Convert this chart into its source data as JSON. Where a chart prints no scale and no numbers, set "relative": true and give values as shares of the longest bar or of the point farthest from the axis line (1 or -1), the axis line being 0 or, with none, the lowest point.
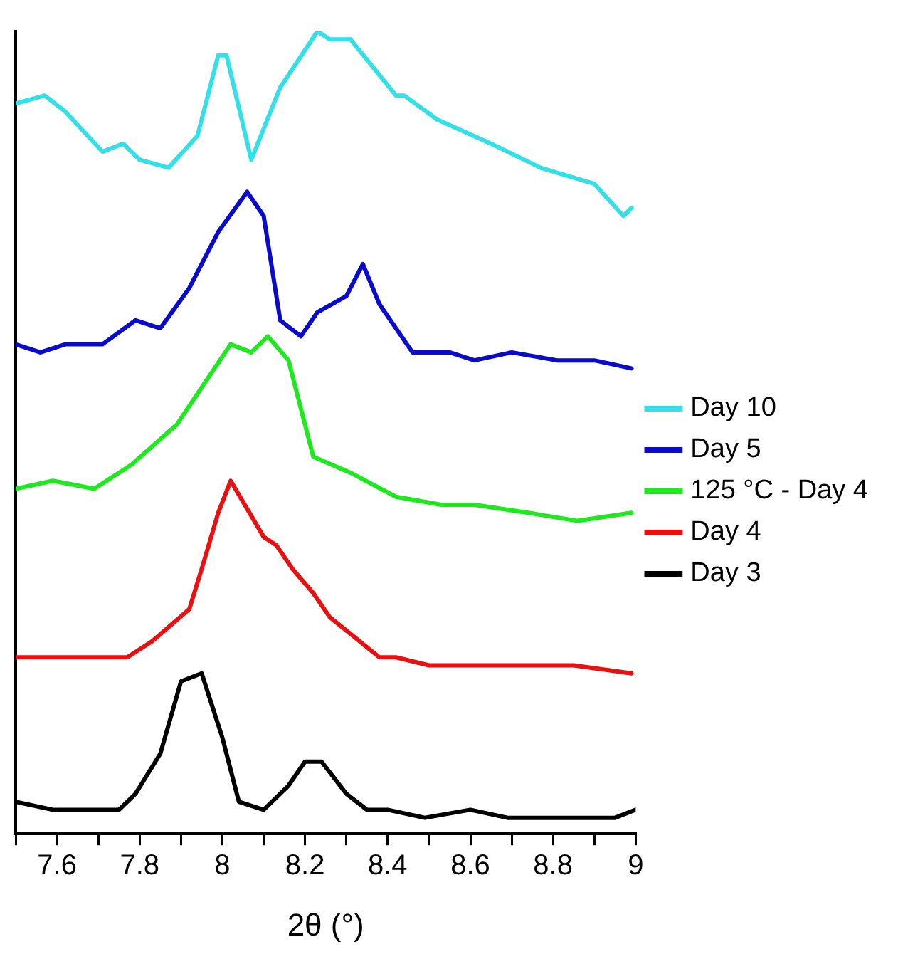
{
  "chart_data": {
    "type": "line",
    "relative": true,
    "xlabel": "2θ (°)",
    "xlim": [
      7.5,
      9
    ],
    "xticks": [
      {
        "value": 7.5,
        "label": null
      },
      7.6,
      {
        "value": 7.7,
        "label": null
      },
      7.8,
      {
        "value": 7.9,
        "label": null
      },
      8,
      {
        "value": 8.1,
        "label": null
      },
      8.2,
      {
        "value": 8.3,
        "label": null
      },
      8.4,
      {
        "value": 8.5,
        "label": null
      },
      8.6,
      {
        "value": 8.7,
        "label": null
      },
      8.8,
      {
        "value": 8.9,
        "label": null
      },
      9
    ],
    "grid": false,
    "legend": "right",
    "marker": "none",
    "line_style": "solid",
    "series": [
      {
        "name": "Day 10",
        "color": "#33e0e8",
        "x": [
          7.5,
          7.57,
          7.62,
          7.71,
          7.76,
          7.8,
          7.87,
          7.94,
          7.99,
          8.01,
          8.07,
          8.14,
          8.23,
          8.26,
          8.31,
          8.42,
          8.44,
          8.52,
          8.65,
          8.77,
          8.9,
          8.97,
          8.99
        ],
        "values": [
          0.91,
          0.92,
          0.9,
          0.85,
          0.86,
          0.84,
          0.83,
          0.87,
          0.97,
          0.97,
          0.84,
          0.93,
          1.0,
          0.99,
          0.99,
          0.92,
          0.92,
          0.89,
          0.86,
          0.83,
          0.81,
          0.77,
          0.78
        ]
      },
      {
        "name": "Day 5",
        "color": "#0a0acc",
        "x": [
          7.5,
          7.56,
          7.62,
          7.71,
          7.79,
          7.85,
          7.92,
          7.99,
          8.06,
          8.1,
          8.14,
          8.19,
          8.23,
          8.3,
          8.34,
          8.38,
          8.46,
          8.55,
          8.61,
          8.7,
          8.81,
          8.9,
          8.99
        ],
        "values": [
          0.61,
          0.6,
          0.61,
          0.61,
          0.64,
          0.63,
          0.68,
          0.75,
          0.8,
          0.77,
          0.64,
          0.62,
          0.65,
          0.67,
          0.71,
          0.66,
          0.6,
          0.6,
          0.59,
          0.6,
          0.59,
          0.59,
          0.58
        ]
      },
      {
        "name": "125 °C - Day 4",
        "color": "#1ee81e",
        "x": [
          7.5,
          7.59,
          7.69,
          7.78,
          7.89,
          8.02,
          8.07,
          8.11,
          8.16,
          8.22,
          8.31,
          8.42,
          8.53,
          8.61,
          8.74,
          8.86,
          8.99
        ],
        "values": [
          0.43,
          0.44,
          0.43,
          0.46,
          0.51,
          0.61,
          0.6,
          0.62,
          0.59,
          0.47,
          0.45,
          0.42,
          0.41,
          0.41,
          0.4,
          0.39,
          0.4
        ]
      },
      {
        "name": "Day 4",
        "color": "#e81010",
        "x": [
          7.5,
          7.55,
          7.61,
          7.68,
          7.77,
          7.83,
          7.92,
          7.95,
          7.99,
          8.02,
          8.1,
          8.13,
          8.17,
          8.22,
          8.26,
          8.38,
          8.42,
          8.5,
          8.7,
          8.85,
          8.99
        ],
        "values": [
          0.22,
          0.22,
          0.22,
          0.22,
          0.22,
          0.24,
          0.28,
          0.33,
          0.4,
          0.44,
          0.37,
          0.36,
          0.33,
          0.3,
          0.27,
          0.22,
          0.22,
          0.21,
          0.21,
          0.21,
          0.2
        ]
      },
      {
        "name": "Day 3",
        "color": "#000000",
        "x": [
          7.5,
          7.59,
          7.65,
          7.71,
          7.75,
          7.79,
          7.85,
          7.9,
          7.95,
          8.0,
          8.04,
          8.1,
          8.16,
          8.2,
          8.24,
          8.3,
          8.35,
          8.4,
          8.49,
          8.6,
          8.69,
          8.75,
          8.86,
          8.95,
          9.0
        ],
        "values": [
          0.04,
          0.03,
          0.03,
          0.03,
          0.03,
          0.05,
          0.1,
          0.19,
          0.2,
          0.12,
          0.04,
          0.03,
          0.06,
          0.09,
          0.09,
          0.05,
          0.03,
          0.03,
          0.02,
          0.03,
          0.02,
          0.02,
          0.02,
          0.02,
          0.03
        ]
      }
    ]
  }
}
